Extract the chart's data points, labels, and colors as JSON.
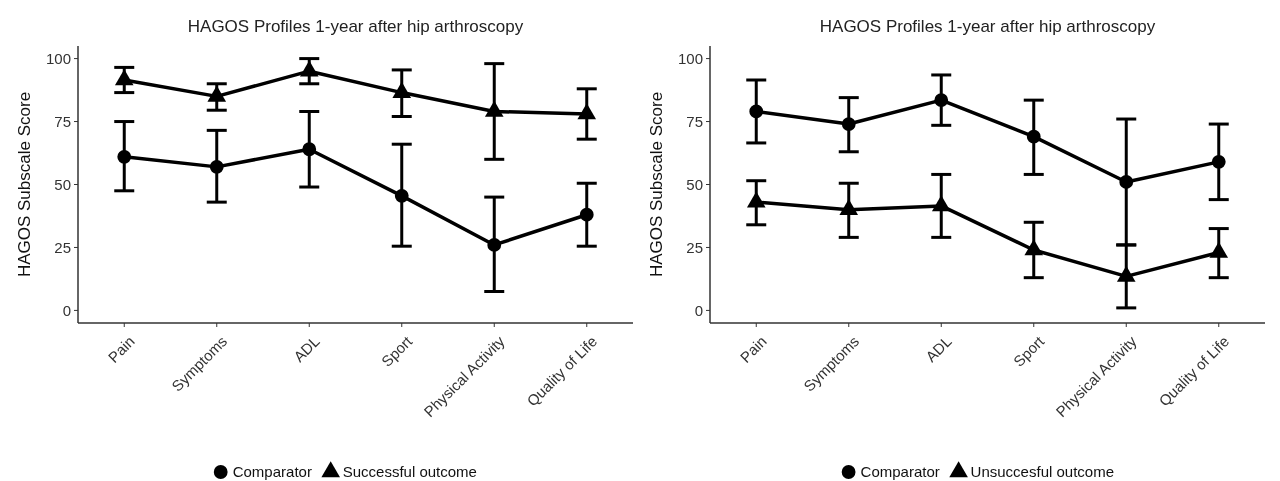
{
  "chart_data": [
    {
      "type": "line",
      "title": "HAGOS Profiles 1-year after hip arthroscopy",
      "ylabel": "HAGOS Subscale Score",
      "categories": [
        "Pain",
        "Symptoms",
        "ADL",
        "Sport",
        "Physical Activity",
        "Quality of Life"
      ],
      "ylim": [
        -5,
        105
      ],
      "yticks": [
        0,
        25,
        50,
        75,
        100
      ],
      "grid": false,
      "legend": "bottom",
      "line_style": "solid",
      "series": [
        {
          "name": "Comparator",
          "color": "#000000",
          "marker": "circle",
          "values": [
            61,
            57,
            64,
            45.5,
            26,
            38
          ],
          "errors": [
            [
              47.5,
              75
            ],
            [
              43,
              71.5
            ],
            [
              49,
              79
            ],
            [
              25.5,
              66
            ],
            [
              7.5,
              45
            ],
            [
              25.5,
              50.5
            ]
          ]
        },
        {
          "name": "Successful outcome",
          "color": "#000000",
          "marker": "triangle",
          "values": [
            91.5,
            85,
            95,
            86.5,
            79,
            78
          ],
          "errors": [
            [
              86.5,
              96.5
            ],
            [
              79.5,
              90
            ],
            [
              90,
              100
            ],
            [
              77,
              95.5
            ],
            [
              60,
              98
            ],
            [
              68,
              88
            ]
          ]
        }
      ]
    },
    {
      "type": "line",
      "title": "HAGOS Profiles 1-year after hip arthroscopy",
      "ylabel": "HAGOS Subscale Score",
      "categories": [
        "Pain",
        "Symptoms",
        "ADL",
        "Sport",
        "Physical Activity",
        "Quality of Life"
      ],
      "ylim": [
        -5,
        105
      ],
      "yticks": [
        0,
        25,
        50,
        75,
        100
      ],
      "grid": false,
      "legend": "bottom",
      "line_style": "solid",
      "series": [
        {
          "name": "Comparator",
          "color": "#000000",
          "marker": "circle",
          "values": [
            79,
            74,
            83.5,
            69,
            51,
            59
          ],
          "errors": [
            [
              66.5,
              91.5
            ],
            [
              63,
              84.5
            ],
            [
              73.5,
              93.5
            ],
            [
              54,
              83.5
            ],
            [
              26,
              76
            ],
            [
              44,
              74
            ]
          ]
        },
        {
          "name": "Unsuccesful outcome",
          "color": "#000000",
          "marker": "triangle",
          "values": [
            43,
            40,
            41.5,
            24,
            13.5,
            23
          ],
          "errors": [
            [
              34,
              51.5
            ],
            [
              29,
              50.5
            ],
            [
              29,
              54
            ],
            [
              13,
              35
            ],
            [
              1,
              26
            ],
            [
              13,
              32.5
            ]
          ]
        }
      ]
    }
  ]
}
